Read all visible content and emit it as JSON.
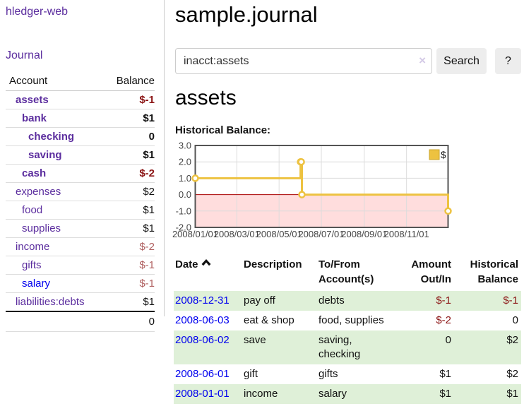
{
  "app": {
    "title": "hledger-web"
  },
  "sidebar": {
    "journal_link": "Journal",
    "account_header": "Account",
    "balance_header": "Balance",
    "accounts": [
      {
        "name": "assets",
        "balance": "$-1",
        "depth": 1,
        "bold": true,
        "balance_style": "neg"
      },
      {
        "name": "bank",
        "balance": "$1",
        "depth": 2,
        "bold": true,
        "balance_style": "pos"
      },
      {
        "name": "checking",
        "balance": "0",
        "depth": 3,
        "bold": true,
        "balance_style": "pos"
      },
      {
        "name": "saving",
        "balance": "$1",
        "depth": 3,
        "bold": true,
        "balance_style": "pos"
      },
      {
        "name": "cash",
        "balance": "$-2",
        "depth": 2,
        "bold": true,
        "balance_style": "neg"
      },
      {
        "name": "expenses",
        "balance": "$2",
        "depth": 1,
        "bold": false,
        "balance_style": "pos"
      },
      {
        "name": "food",
        "balance": "$1",
        "depth": 2,
        "bold": false,
        "balance_style": "pos"
      },
      {
        "name": "supplies",
        "balance": "$1",
        "depth": 2,
        "bold": false,
        "balance_style": "pos"
      },
      {
        "name": "income",
        "balance": "$-2",
        "depth": 1,
        "bold": false,
        "balance_style": "neg-soft"
      },
      {
        "name": "gifts",
        "balance": "$-1",
        "depth": 2,
        "bold": false,
        "balance_style": "neg-soft"
      },
      {
        "name": "salary",
        "balance": "$-1",
        "depth": 2,
        "bold": false,
        "balance_style": "neg-soft",
        "link_style": "unvisited"
      },
      {
        "name": "liabilities:debts",
        "balance": "$1",
        "depth": 1,
        "bold": false,
        "balance_style": "pos"
      }
    ],
    "total": "0"
  },
  "header": {
    "title": "sample.journal"
  },
  "search": {
    "value": "inacct:assets",
    "clear_icon": "×",
    "button_label": "Search",
    "help_label": "?"
  },
  "account_page": {
    "heading": "assets",
    "chart_label": "Historical Balance:"
  },
  "chart_data": {
    "type": "line",
    "title": "Historical Balance:",
    "series": [
      {
        "name": "$",
        "step": true,
        "points": [
          [
            "2008-01-01",
            1
          ],
          [
            "2008-06-01",
            2
          ],
          [
            "2008-06-02",
            2
          ],
          [
            "2008-06-03",
            0
          ],
          [
            "2008-12-31",
            -1
          ]
        ]
      }
    ],
    "x_range": [
      "2008-01-01",
      "2008-12-31"
    ],
    "y_range": [
      -2,
      3
    ],
    "y_ticks": [
      3,
      2,
      1,
      0,
      -1,
      -2
    ],
    "y_tick_labels": [
      "3.0",
      "2.0",
      "1.0",
      "0.0",
      "-1.0",
      "-2.0"
    ],
    "x_ticks": [
      {
        "date": "2008-01-01",
        "label": "2008/01/01"
      },
      {
        "date": "2008-03-01",
        "label": "2008/03/01"
      },
      {
        "date": "2008-05-01",
        "label": "2008/05/01"
      },
      {
        "date": "2008-07-01",
        "label": "2008/07/01"
      },
      {
        "date": "2008-09-01",
        "label": "2008/09/01"
      },
      {
        "date": "2008-11-01",
        "label": "2008/11/01"
      }
    ],
    "legend": {
      "label": "$",
      "position": "top-right"
    },
    "negative_region": true,
    "grid": true
  },
  "register": {
    "headers": {
      "date": "Date",
      "description": "Description",
      "accounts": "To/From Account(s)",
      "amount": "Amount Out/In",
      "balance": "Historical Balance"
    },
    "rows": [
      {
        "date": "2008-12-31",
        "description": "pay off",
        "accounts": "debts",
        "amount": "$-1",
        "amount_style": "neg",
        "balance": "$-1",
        "balance_style": "neg"
      },
      {
        "date": "2008-06-03",
        "description": "eat & shop",
        "accounts": "food, supplies",
        "amount": "$-2",
        "amount_style": "neg",
        "balance": "0",
        "balance_style": "pos"
      },
      {
        "date": "2008-06-02",
        "description": "save",
        "accounts": "saving, checking",
        "amount": "0",
        "amount_style": "pos",
        "balance": "$2",
        "balance_style": "pos"
      },
      {
        "date": "2008-06-01",
        "description": "gift",
        "accounts": "gifts",
        "amount": "$1",
        "amount_style": "pos",
        "balance": "$2",
        "balance_style": "pos"
      },
      {
        "date": "2008-01-01",
        "description": "income",
        "accounts": "salary",
        "amount": "$1",
        "amount_style": "pos",
        "balance": "$1",
        "balance_style": "pos"
      }
    ]
  },
  "colors": {
    "link_purple": "#5b2d9e",
    "link_blue": "#0000ee",
    "negative_strong": "#8b1414",
    "negative_soft": "#b06060",
    "row_stripe_green": "#dff0d8",
    "chart_line": "#edc240",
    "chart_negative_region": "#ffdddd",
    "chart_zero_line": "#aa0000",
    "chart_border": "#545454",
    "chart_grid": "#dcdcdc"
  }
}
